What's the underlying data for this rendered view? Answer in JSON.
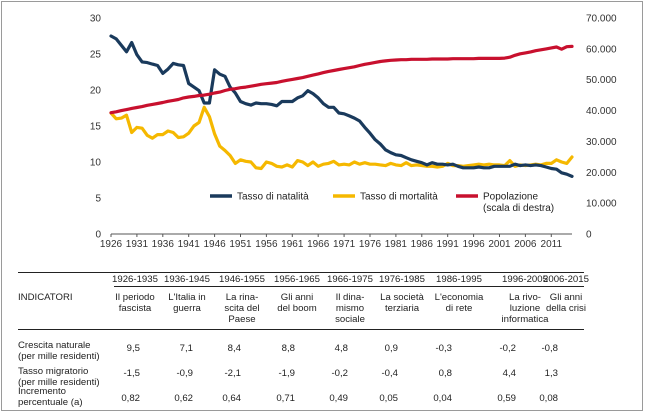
{
  "chart_data": {
    "type": "line",
    "title": "",
    "x": [
      1926,
      1927,
      1928,
      1929,
      1930,
      1931,
      1932,
      1933,
      1934,
      1935,
      1936,
      1937,
      1938,
      1939,
      1940,
      1941,
      1942,
      1943,
      1944,
      1945,
      1946,
      1947,
      1948,
      1949,
      1950,
      1951,
      1952,
      1953,
      1954,
      1955,
      1956,
      1957,
      1958,
      1959,
      1960,
      1961,
      1962,
      1963,
      1964,
      1965,
      1966,
      1967,
      1968,
      1969,
      1970,
      1971,
      1972,
      1973,
      1974,
      1975,
      1976,
      1977,
      1978,
      1979,
      1980,
      1981,
      1982,
      1983,
      1984,
      1985,
      1986,
      1987,
      1988,
      1989,
      1990,
      1991,
      1992,
      1993,
      1994,
      1995,
      1996,
      1997,
      1998,
      1999,
      2000,
      2001,
      2002,
      2003,
      2004,
      2005,
      2006,
      2007,
      2008,
      2009,
      2010,
      2011,
      2012,
      2013,
      2014,
      2015
    ],
    "xticks": [
      "1926",
      "1931",
      "1936",
      "1941",
      "1946",
      "1951",
      "1956",
      "1961",
      "1966",
      "1971",
      "1976",
      "1981",
      "1986",
      "1991",
      "1996",
      "2001",
      "2006",
      "2011"
    ],
    "ylim_left": [
      0,
      30
    ],
    "yticks_left": [
      "0",
      "5",
      "10",
      "15",
      "20",
      "25",
      "30"
    ],
    "ylim_right": [
      0,
      70000
    ],
    "yticks_right": [
      "0",
      "10.000",
      "20.000",
      "30.000",
      "40.000",
      "50.000",
      "60.000",
      "70.000"
    ],
    "series": [
      {
        "name": "Tasso di natalità",
        "axis": "left",
        "color": "#1a3a5c",
        "values": [
          27.5,
          27.1,
          26.2,
          25.3,
          26.6,
          24.9,
          23.9,
          23.8,
          23.6,
          23.4,
          22.3,
          22.9,
          23.7,
          23.5,
          23.4,
          20.9,
          20.4,
          19.9,
          18.2,
          18.2,
          22.8,
          22.2,
          21.9,
          20.4,
          19.6,
          18.4,
          18.1,
          17.9,
          18.2,
          18.1,
          18.1,
          18.0,
          17.8,
          18.4,
          18.4,
          18.4,
          18.9,
          19.2,
          19.9,
          19.5,
          18.9,
          18.1,
          17.6,
          17.6,
          16.8,
          16.7,
          16.4,
          16.1,
          15.7,
          14.8,
          14.0,
          13.1,
          12.5,
          11.7,
          11.3,
          11.0,
          10.9,
          10.6,
          10.3,
          10.1,
          9.9,
          9.6,
          9.9,
          9.7,
          9.7,
          9.6,
          9.7,
          9.4,
          9.2,
          9.2,
          9.2,
          9.3,
          9.2,
          9.2,
          9.4,
          9.4,
          9.4,
          9.4,
          9.7,
          9.5,
          9.6,
          9.5,
          9.6,
          9.5,
          9.3,
          9.1,
          9.0,
          8.5,
          8.3,
          8.0
        ]
      },
      {
        "name": "Tasso di mortalità",
        "axis": "left",
        "color": "#f5b800",
        "values": [
          16.8,
          16.0,
          16.1,
          16.5,
          14.1,
          14.8,
          14.7,
          13.7,
          13.3,
          13.8,
          13.8,
          14.3,
          14.1,
          13.4,
          13.5,
          14.0,
          15.0,
          15.5,
          17.6,
          16.3,
          13.9,
          12.2,
          11.6,
          10.9,
          9.8,
          10.3,
          10.1,
          10.0,
          9.2,
          9.1,
          10.0,
          9.8,
          9.4,
          9.3,
          9.6,
          9.3,
          10.2,
          10.0,
          9.5,
          10.0,
          9.4,
          9.7,
          9.8,
          10.1,
          9.6,
          9.7,
          9.6,
          10.0,
          9.7,
          9.9,
          9.7,
          9.7,
          9.6,
          9.5,
          9.8,
          9.6,
          9.5,
          9.9,
          9.5,
          9.6,
          9.5,
          9.4,
          9.4,
          9.3,
          9.4,
          9.8,
          9.5,
          9.5,
          9.4,
          9.5,
          9.6,
          9.7,
          9.6,
          9.7,
          9.6,
          9.6,
          9.5,
          10.2,
          9.4,
          9.6,
          9.5,
          9.6,
          9.7,
          9.6,
          9.8,
          9.8,
          10.3,
          10.0,
          9.8,
          10.7
        ]
      },
      {
        "name": "Popolazione",
        "subname": "(scala di destra)",
        "axis": "right",
        "color": "#c8102e",
        "values": [
          39300,
          39600,
          40000,
          40300,
          40700,
          41000,
          41300,
          41700,
          42000,
          42300,
          42600,
          43000,
          43300,
          43600,
          44100,
          44400,
          44600,
          44900,
          45000,
          45300,
          45700,
          46000,
          46500,
          46900,
          47100,
          47400,
          47600,
          47900,
          48200,
          48500,
          48700,
          48900,
          49100,
          49500,
          49800,
          50100,
          50400,
          50700,
          51100,
          51500,
          51900,
          52300,
          52700,
          53000,
          53300,
          53600,
          53900,
          54200,
          54600,
          55000,
          55300,
          55600,
          55900,
          56100,
          56300,
          56400,
          56500,
          56500,
          56600,
          56600,
          56600,
          56600,
          56700,
          56700,
          56700,
          56700,
          56800,
          56800,
          56800,
          56800,
          56800,
          56900,
          56900,
          56900,
          56900,
          56900,
          57000,
          57300,
          57900,
          58400,
          58700,
          59000,
          59400,
          59700,
          60000,
          60300,
          60600,
          59900,
          60700,
          60800
        ]
      }
    ]
  },
  "table": {
    "indicators_label": "INDICATORI",
    "columns": [
      {
        "period": "1926-1935",
        "name": [
          "Il periodo",
          "fascista"
        ]
      },
      {
        "period": "1936-1945",
        "name": [
          "L'Italia in",
          "guerra"
        ]
      },
      {
        "period": "1946-1955",
        "name": [
          "La rina-",
          "scita del",
          "Paese"
        ]
      },
      {
        "period": "1956-1965",
        "name": [
          "Gli anni",
          "del boom"
        ]
      },
      {
        "period": "1966-1975",
        "name": [
          "Il dina-",
          "mismo",
          "sociale"
        ]
      },
      {
        "period": "1976-1985",
        "name": [
          "La società",
          "terziaria"
        ]
      },
      {
        "period": "1986-1995",
        "name": [
          "L'economia",
          "di rete"
        ]
      },
      {
        "period": "1996-2005",
        "name": [
          "La rivo-",
          "luzione",
          "informatica"
        ]
      },
      {
        "period": "2006-2015",
        "name": [
          "Gli anni",
          "della crisi"
        ]
      }
    ],
    "rows": [
      {
        "label": [
          "Crescita naturale",
          "(per mille residenti)"
        ],
        "values": [
          "9,5",
          "7,1",
          "8,4",
          "8,8",
          "4,8",
          "0,9",
          "-0,3",
          "-0,2",
          "-0,8"
        ]
      },
      {
        "label": [
          "Tasso migratorio",
          "(per mille residenti)"
        ],
        "values": [
          "-1,5",
          "-0,9",
          "-2,1",
          "-1,9",
          "-0,2",
          "-0,4",
          "0,8",
          "4,4",
          "1,3"
        ]
      },
      {
        "label": [
          "Incremento",
          "percentuale (a)"
        ],
        "values": [
          "0,82",
          "0,62",
          "0,64",
          "0,71",
          "0,49",
          "0,05",
          "0,04",
          "0,59",
          "0,08"
        ]
      }
    ]
  }
}
